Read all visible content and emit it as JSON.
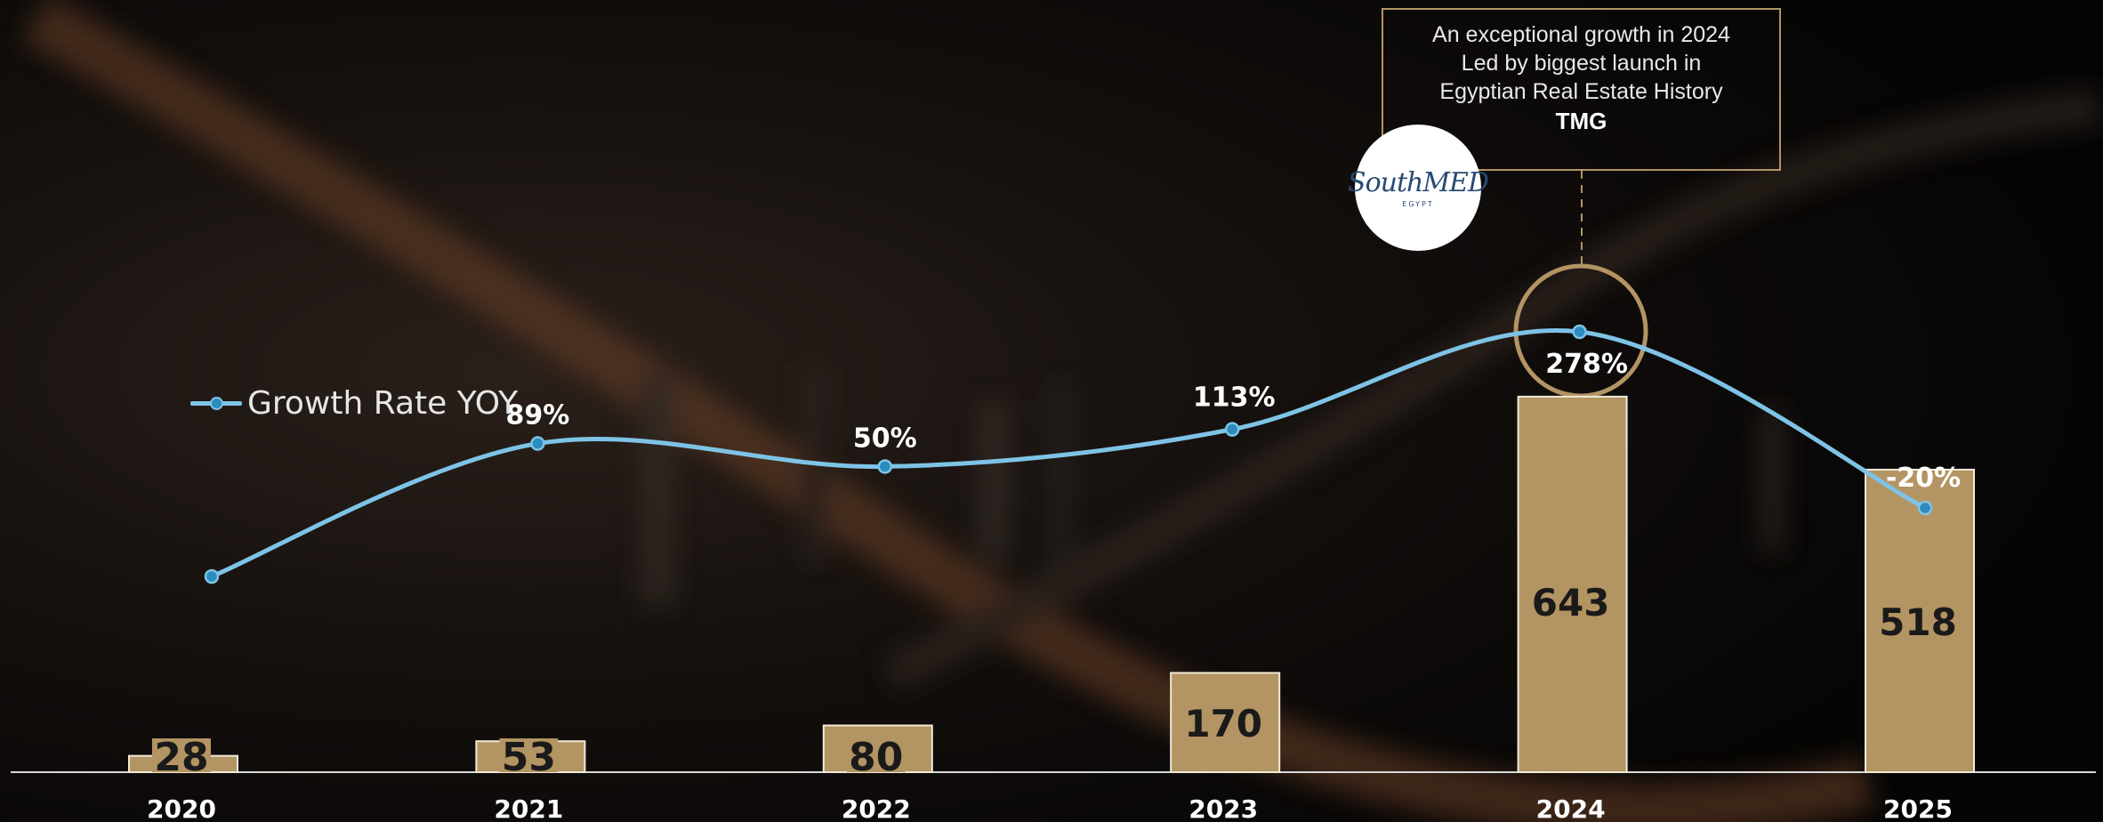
{
  "chart_data": {
    "type": "bar",
    "categories": [
      "2020",
      "2021",
      "2022",
      "2023",
      "2024",
      "2025"
    ],
    "series": [
      {
        "type": "bar",
        "values": [
          28,
          53,
          80,
          170,
          643,
          518
        ],
        "value_labels": [
          "28",
          "53",
          "80",
          "170",
          "643",
          "518"
        ],
        "color": "#b39463"
      },
      {
        "type": "line",
        "name": "Growth Rate YOY",
        "values": [
          null,
          89,
          50,
          113,
          278,
          -20
        ],
        "value_labels": [
          "",
          "89%",
          "50%",
          "113%",
          "278%",
          "-20%"
        ],
        "color": "#7ec3e6"
      }
    ],
    "legend": {
      "position": "left",
      "label": "Growth Rate YOY"
    },
    "grid": false,
    "highlight_category": "2024",
    "annotation": {
      "lines": [
        "An exceptional growth in 2024",
        "Led by biggest launch in",
        "Egyptian Real Estate History"
      ],
      "emphasis": "TMG"
    }
  },
  "logo": {
    "text": "SouthMED",
    "subtext": "EGYPT"
  },
  "colors": {
    "bar": "#b39463",
    "bar_border": "#f2ead8",
    "line": "#7ec3e6",
    "point": "#2c8bbf",
    "accent": "#b39463",
    "text": "#ffffff",
    "bar_text": "#1a1a1a"
  }
}
